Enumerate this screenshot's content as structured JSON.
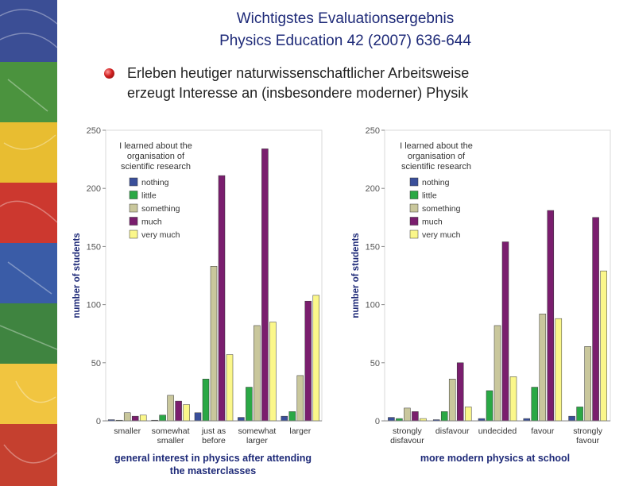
{
  "title": {
    "line1": "Wichtigstes Evaluationsergebnis",
    "line2": "Physics Education 42 (2007) 636-644"
  },
  "bullet": {
    "line1": "Erleben heutiger naturwissenschaftlicher Arbeitsweise",
    "line2": "erzeugt Interesse an (insbesondere moderner) Physik"
  },
  "colors": {
    "title": "#1e2a78",
    "nothing": "#3a4f9a",
    "little": "#2aa845",
    "something": "#c9c79c",
    "much": "#7a1e6e",
    "very_much": "#fbf78a"
  },
  "chart_data": [
    {
      "type": "bar",
      "legend_title": [
        "I learned about the",
        "organisation of",
        "scientific research"
      ],
      "legend_position": "top-left",
      "ylabel": "number of students",
      "xlabel": [
        "general interest in physics after attending",
        "the masterclasses"
      ],
      "ylim": [
        0,
        250
      ],
      "yticks": [
        0,
        50,
        100,
        150,
        200,
        250
      ],
      "grid": false,
      "categories": [
        [
          "smaller"
        ],
        [
          "somewhat",
          "smaller"
        ],
        [
          "just as",
          "before"
        ],
        [
          "somewhat",
          "larger"
        ],
        [
          "larger"
        ]
      ],
      "series": [
        {
          "name": "nothing",
          "values": [
            1,
            0,
            7,
            3,
            4
          ]
        },
        {
          "name": "little",
          "values": [
            0,
            5,
            36,
            29,
            8
          ]
        },
        {
          "name": "something",
          "values": [
            7,
            22,
            133,
            82,
            39
          ]
        },
        {
          "name": "much",
          "values": [
            4,
            17,
            211,
            234,
            103
          ]
        },
        {
          "name": "very much",
          "values": [
            5,
            14,
            57,
            85,
            108
          ]
        }
      ]
    },
    {
      "type": "bar",
      "legend_title": [
        "I learned about the",
        "organisation of",
        "scientific research"
      ],
      "legend_position": "top-left",
      "ylabel": "number of students",
      "xlabel": [
        "more modern physics at school"
      ],
      "ylim": [
        0,
        250
      ],
      "yticks": [
        0,
        50,
        100,
        150,
        200,
        250
      ],
      "grid": false,
      "categories": [
        [
          "strongly",
          "disfavour"
        ],
        [
          "disfavour"
        ],
        [
          "undecided"
        ],
        [
          "favour"
        ],
        [
          "strongly",
          "favour"
        ]
      ],
      "series": [
        {
          "name": "nothing",
          "values": [
            3,
            1,
            2,
            2,
            4
          ]
        },
        {
          "name": "little",
          "values": [
            2,
            8,
            26,
            29,
            12
          ]
        },
        {
          "name": "something",
          "values": [
            11,
            36,
            82,
            92,
            64
          ]
        },
        {
          "name": "much",
          "values": [
            8,
            50,
            154,
            181,
            175
          ]
        },
        {
          "name": "very much",
          "values": [
            2,
            12,
            38,
            88,
            129
          ]
        }
      ]
    }
  ]
}
